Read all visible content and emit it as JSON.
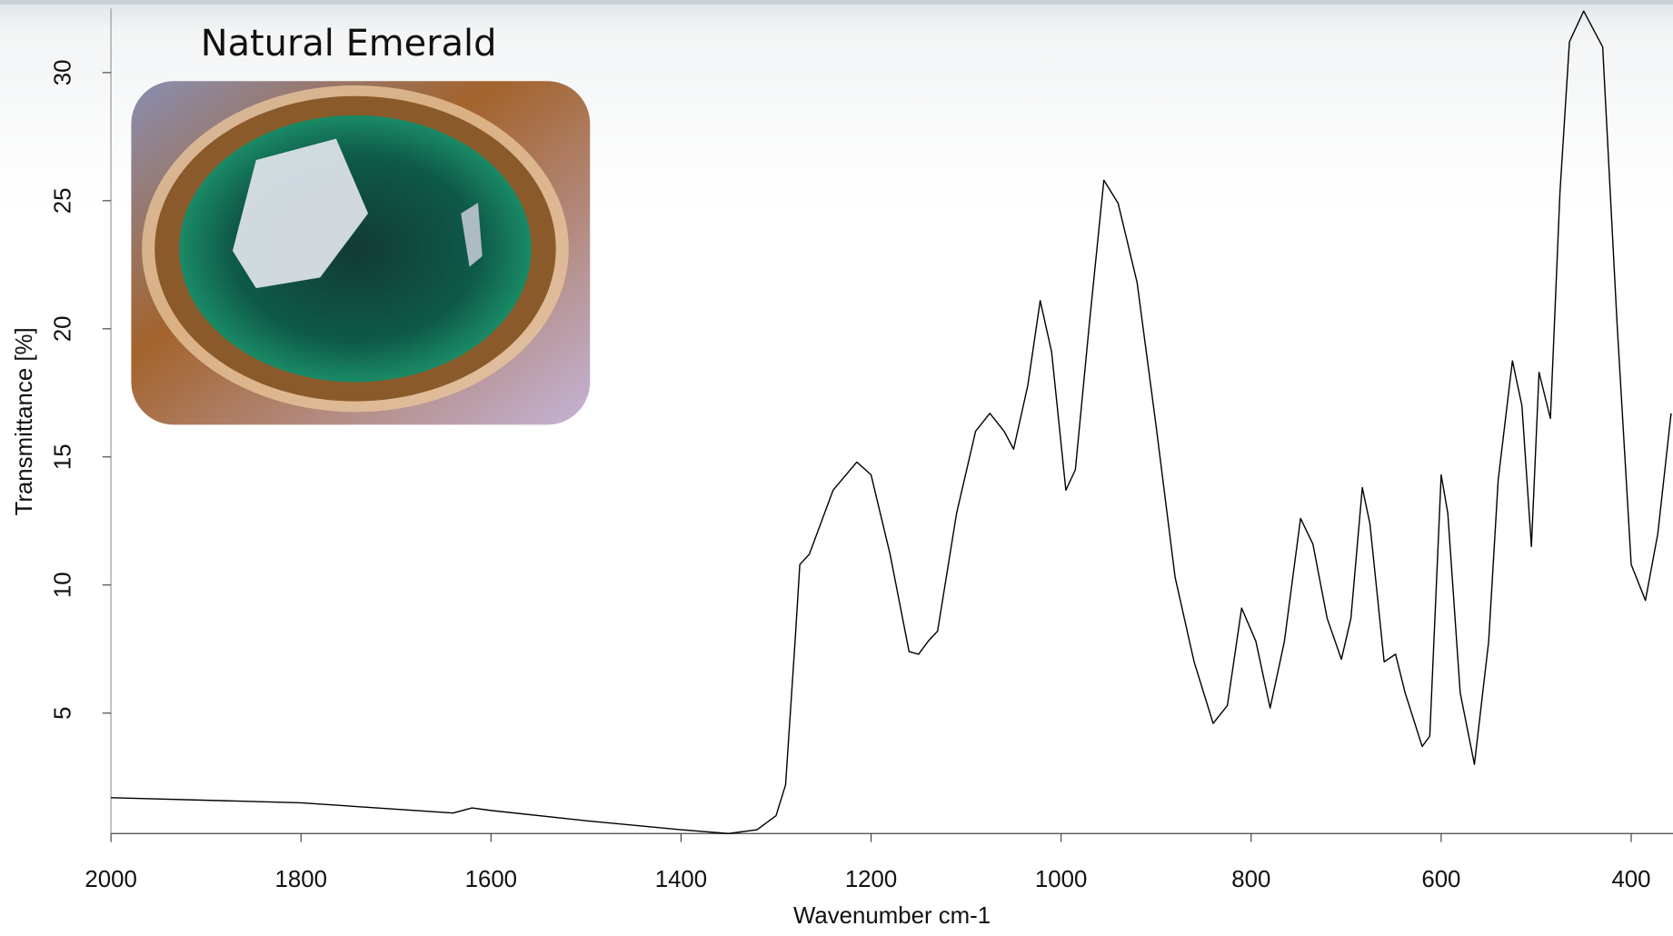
{
  "chart_data": {
    "type": "line",
    "inset_label": "Natural Emerald",
    "xlabel": "Wavenumber cm-1",
    "ylabel": "Transmittance [%]",
    "xlim": [
      2000,
      356
    ],
    "ylim": [
      0.3,
      32.5
    ],
    "xticks": [
      2000,
      1800,
      1600,
      1400,
      1200,
      1000,
      800,
      600,
      400
    ],
    "yticks": [
      5,
      10,
      15,
      20,
      25,
      30
    ],
    "x": [
      2000,
      1800,
      1640,
      1620,
      1600,
      1500,
      1400,
      1350,
      1320,
      1300,
      1290,
      1280,
      1275,
      1265,
      1240,
      1215,
      1200,
      1180,
      1160,
      1150,
      1140,
      1130,
      1110,
      1090,
      1075,
      1060,
      1050,
      1035,
      1022,
      1010,
      995,
      985,
      970,
      955,
      940,
      920,
      900,
      880,
      860,
      840,
      825,
      810,
      795,
      780,
      765,
      748,
      735,
      720,
      705,
      695,
      683,
      675,
      660,
      648,
      638,
      620,
      612,
      600,
      593,
      580,
      565,
      550,
      540,
      525,
      515,
      505,
      497,
      485,
      475,
      465,
      450,
      430,
      415,
      400,
      385,
      372,
      358
    ],
    "series": [
      {
        "name": "Natural Emerald spectrum",
        "color": "#000000",
        "values": [
          1.7,
          1.5,
          1.1,
          1.3,
          1.2,
          0.8,
          0.45,
          0.3,
          0.45,
          1.0,
          2.2,
          7.8,
          10.8,
          11.2,
          13.7,
          14.8,
          14.3,
          11.2,
          7.4,
          7.3,
          7.8,
          8.2,
          12.8,
          16.0,
          16.7,
          16.0,
          15.3,
          17.8,
          21.1,
          19.1,
          13.7,
          14.5,
          20.3,
          25.8,
          24.9,
          21.8,
          16.2,
          10.3,
          7.0,
          4.6,
          5.3,
          9.1,
          7.8,
          5.2,
          7.8,
          12.6,
          11.6,
          8.7,
          7.1,
          8.7,
          13.8,
          12.4,
          7.0,
          7.3,
          5.8,
          3.7,
          4.1,
          14.3,
          12.8,
          5.8,
          3.0,
          7.8,
          14.1,
          18.75,
          17.0,
          11.5,
          18.3,
          16.5,
          25.3,
          31.2,
          32.4,
          31.0,
          20.3,
          10.8,
          9.4,
          12.0,
          16.7
        ]
      }
    ]
  }
}
